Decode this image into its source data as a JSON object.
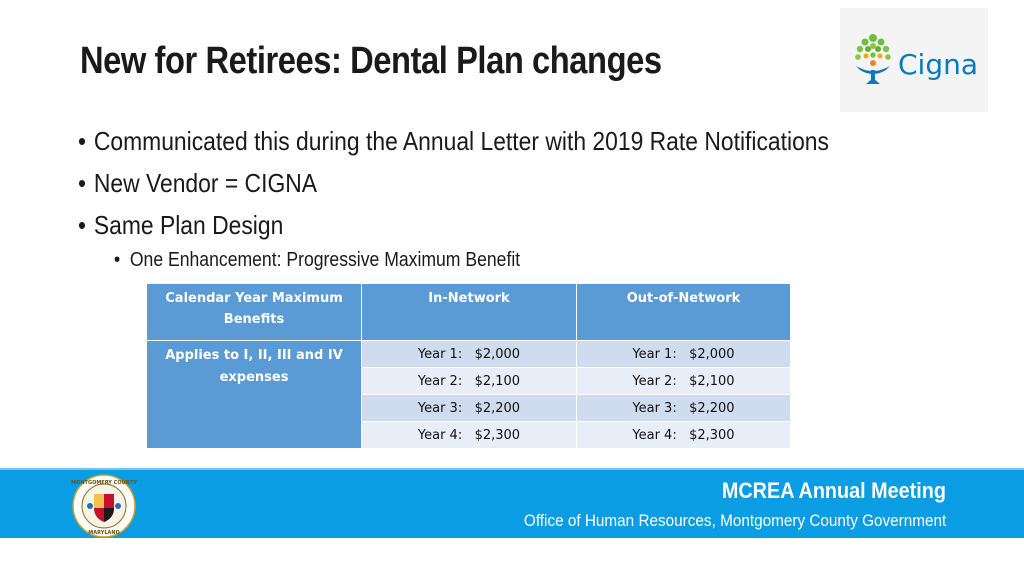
{
  "slide": {
    "title": "New for Retirees: Dental Plan changes",
    "logo_text": "Cigna",
    "bullets": [
      "Communicated this during the Annual Letter with 2019 Rate Notifications",
      "New Vendor = CIGNA",
      "Same Plan Design"
    ],
    "sub_bullet": "One Enhancement: Progressive Maximum Benefit"
  },
  "table": {
    "headers": [
      "Calendar Year Maximum Benefits",
      "In-Network",
      "Out-of-Network"
    ],
    "row_label": "Applies to I, II, III and IV expenses",
    "in_network": [
      "Year 1:   $2,000",
      "Year 2:   $2,100",
      "Year 3:   $2,200",
      "Year 4:   $2,300"
    ],
    "out_of_network": [
      "Year 1:   $2,000",
      "Year 2:   $2,100",
      "Year 3:   $2,200",
      "Year 4:   $2,300"
    ]
  },
  "footer": {
    "meeting": "MCREA Annual Meeting",
    "office": "Office of Human Resources, Montgomery County Government",
    "seal_top_text": "MONTGOMERY COUNTY",
    "seal_bottom_text": "MARYLAND"
  },
  "colors": {
    "table_header": "#5b9bd5",
    "table_row_dark": "#cfdcef",
    "table_row_light": "#e8eef7",
    "footer_band": "#0b9de3",
    "cigna_blue": "#0a7abf",
    "cigna_green": "#6cbf3f"
  },
  "icons": {
    "logo": "cigna-tree-logo",
    "seal": "montgomery-county-seal"
  }
}
